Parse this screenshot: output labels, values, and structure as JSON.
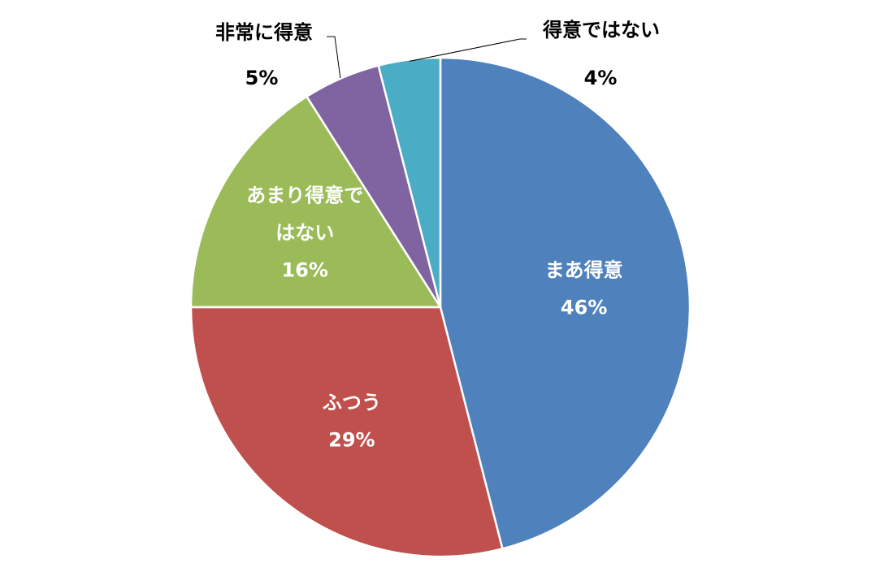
{
  "chart_data": {
    "type": "pie",
    "slices": [
      {
        "label": "まあ得意",
        "value": 46,
        "value_text": "46%",
        "color": "#4F81BD",
        "label_position": "inside"
      },
      {
        "label": "ふつう",
        "value": 29,
        "value_text": "29%",
        "color": "#C0504D",
        "label_position": "inside"
      },
      {
        "label": "あまり得意ではない",
        "label_lines": [
          "あまり得意で",
          "はない"
        ],
        "value": 16,
        "value_text": "16%",
        "color": "#9BBB59",
        "label_position": "inside"
      },
      {
        "label": "非常に得意",
        "value": 5,
        "value_text": "5%",
        "color": "#8064A2",
        "label_position": "outside-left"
      },
      {
        "label": "得意ではない",
        "value": 4,
        "value_text": "4%",
        "color": "#4BACC6",
        "label_position": "outside-right"
      }
    ],
    "start_angle": "12 o'clock",
    "direction": "clockwise",
    "legend": "none",
    "slice_border_color": "#ffffff",
    "label_colors": {
      "inside": "#ffffff",
      "outside": "#000000"
    }
  }
}
